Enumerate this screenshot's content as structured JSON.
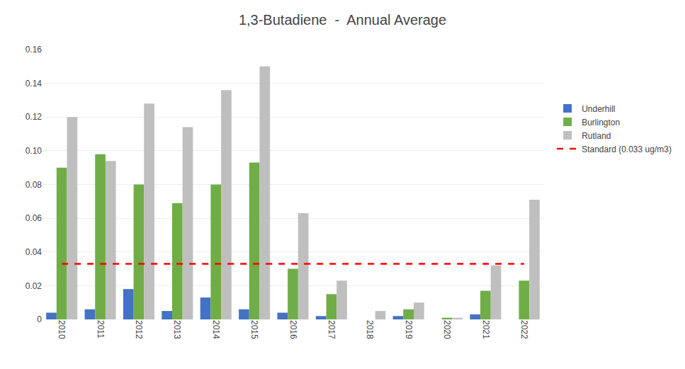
{
  "chart_data": {
    "type": "bar",
    "title": "1,3-Butadiene  -  Annual Average",
    "categories": [
      "2010",
      "2011",
      "2012",
      "2013",
      "2014",
      "2015",
      "2016",
      "2017",
      "2018",
      "2019",
      "2020",
      "2021",
      "2022"
    ],
    "series": [
      {
        "name": "Underhill",
        "color": "#4472c4",
        "values": [
          0.004,
          0.006,
          0.018,
          0.005,
          0.013,
          0.006,
          0.004,
          0.002,
          0.0,
          0.002,
          0.0,
          0.003,
          0.0
        ]
      },
      {
        "name": "Burlington",
        "color": "#70ad47",
        "values": [
          0.09,
          0.098,
          0.08,
          0.069,
          0.08,
          0.093,
          0.03,
          0.015,
          0.0,
          0.006,
          0.001,
          0.017,
          0.023
        ]
      },
      {
        "name": "Rutland",
        "color": "#bfbfbf",
        "values": [
          0.12,
          0.094,
          0.128,
          0.114,
          0.136,
          0.15,
          0.063,
          0.023,
          0.005,
          0.01,
          0.001,
          0.032,
          0.071
        ]
      },
      {
        "name": "Standard (0.033 ug/m3)",
        "type": "line",
        "color": "#ff0000",
        "line_style": "dashed",
        "values": [
          0.033,
          0.033,
          0.033,
          0.033,
          0.033,
          0.033,
          0.033,
          0.033,
          0.033,
          0.033,
          0.033,
          0.033,
          0.033
        ]
      }
    ],
    "ylim": [
      0,
      0.16
    ],
    "yticks": [
      0,
      0.02,
      0.04,
      0.06,
      0.08,
      {
        "value": 0.1,
        "label": "0.10"
      },
      0.12,
      0.14,
      0.16
    ],
    "grid": true,
    "legend": "right"
  }
}
